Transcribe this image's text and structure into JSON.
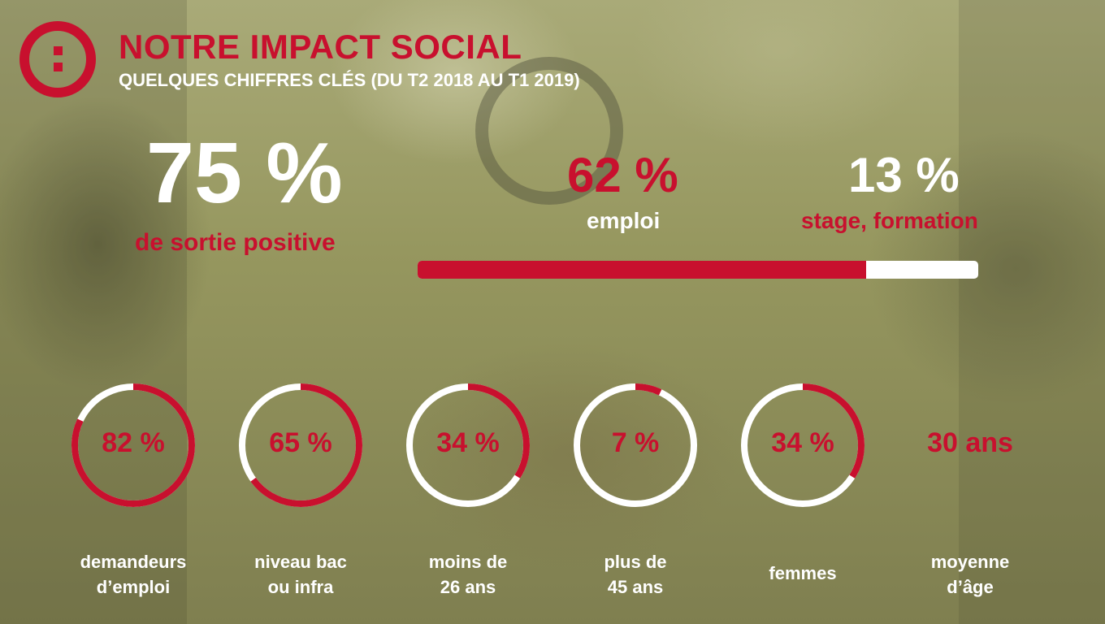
{
  "header": {
    "title": "NOTRE IMPACT SOCIAL",
    "subtitle": "QUELQUES CHIFFRES CLÉS (DU T2 2018 AU T1 2019)",
    "logo_icon": "colon-in-circle-logo-icon"
  },
  "colors": {
    "accent": "#c8102e",
    "text_light": "#ffffff",
    "ring_track": "#ffffff"
  },
  "headline": {
    "value": "75 %",
    "label": "de sortie positive"
  },
  "breakdown": {
    "emploi": {
      "value": "62 %",
      "label": "emploi",
      "fraction": 0.8
    },
    "stage": {
      "value": "13 %",
      "label": "stage, formation"
    }
  },
  "stats": [
    {
      "value": "82 %",
      "label_line1": "demandeurs",
      "label_line2": "d’emploi",
      "percent": 82
    },
    {
      "value": "65 %",
      "label_line1": "niveau bac",
      "label_line2": "ou infra",
      "percent": 65
    },
    {
      "value": "34 %",
      "label_line1": "moins de",
      "label_line2": "26 ans",
      "percent": 34
    },
    {
      "value": "7 %",
      "label_line1": "plus de",
      "label_line2": "45 ans",
      "percent": 7
    },
    {
      "value": "34 %",
      "label_line1": "femmes",
      "label_line2": "",
      "percent": 34
    },
    {
      "value": "30 ans",
      "label_line1": "moyenne",
      "label_line2": "d’âge",
      "percent": null
    }
  ]
}
